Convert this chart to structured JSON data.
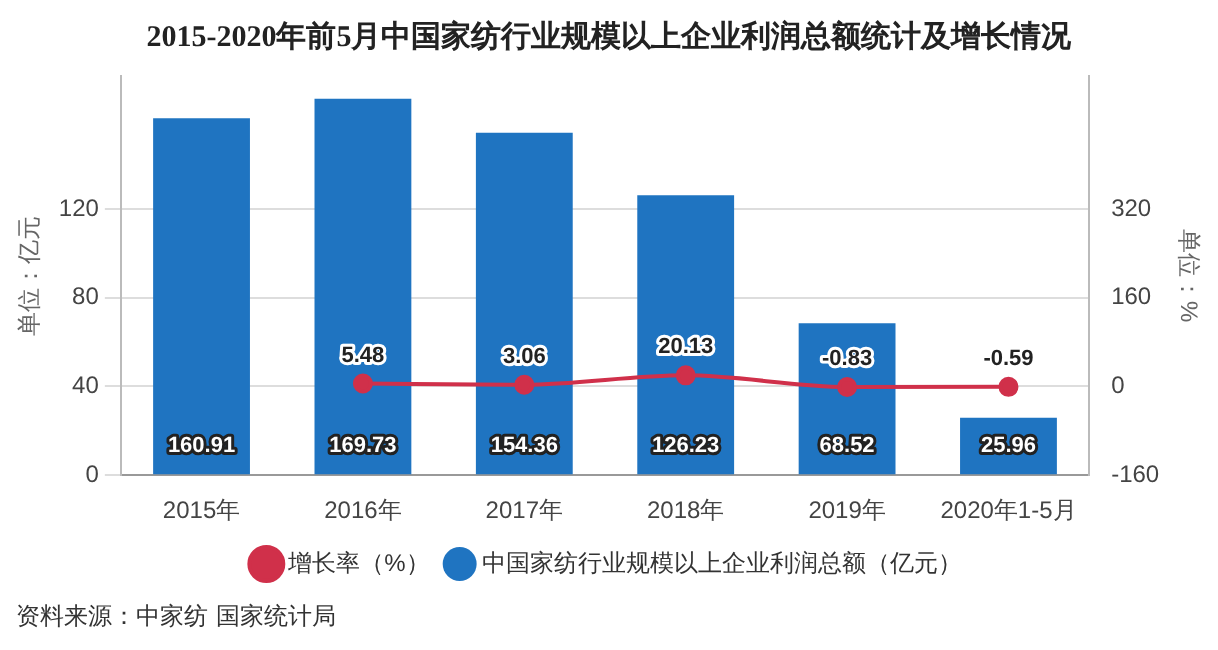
{
  "chart_data": {
    "type": "bar",
    "title": "2015-2020年前5月中国家纺行业规模以上企业利润总额统计及增长情况",
    "categories": [
      "2015年",
      "2016年",
      "2017年",
      "2018年",
      "2019年",
      "2020年1-5月"
    ],
    "series": [
      {
        "name": "中国家纺行业规模以上企业利润总额（亿元）",
        "color": "#1f74c1",
        "values": [
          160.91,
          169.73,
          154.36,
          126.23,
          68.52,
          25.96
        ]
      },
      {
        "name": "增长率（%）",
        "type": "line",
        "axis": "y2",
        "color": "#d0304a",
        "values": [
          null,
          5.48,
          3.06,
          20.13,
          -0.83,
          -0.59
        ]
      }
    ],
    "ylabel": "单位：亿元",
    "y2label": "单位：%",
    "ylim": [
      0,
      180
    ],
    "yticks": [
      0,
      40,
      80,
      120
    ],
    "y2lim": [
      -160,
      560
    ],
    "y2ticks": [
      -160,
      0,
      160,
      320
    ],
    "grid": "y",
    "legend": "bottom",
    "marker": "circle",
    "data_labels": true,
    "annotations": [
      "资料来源：中家纺 国家统计局"
    ]
  }
}
